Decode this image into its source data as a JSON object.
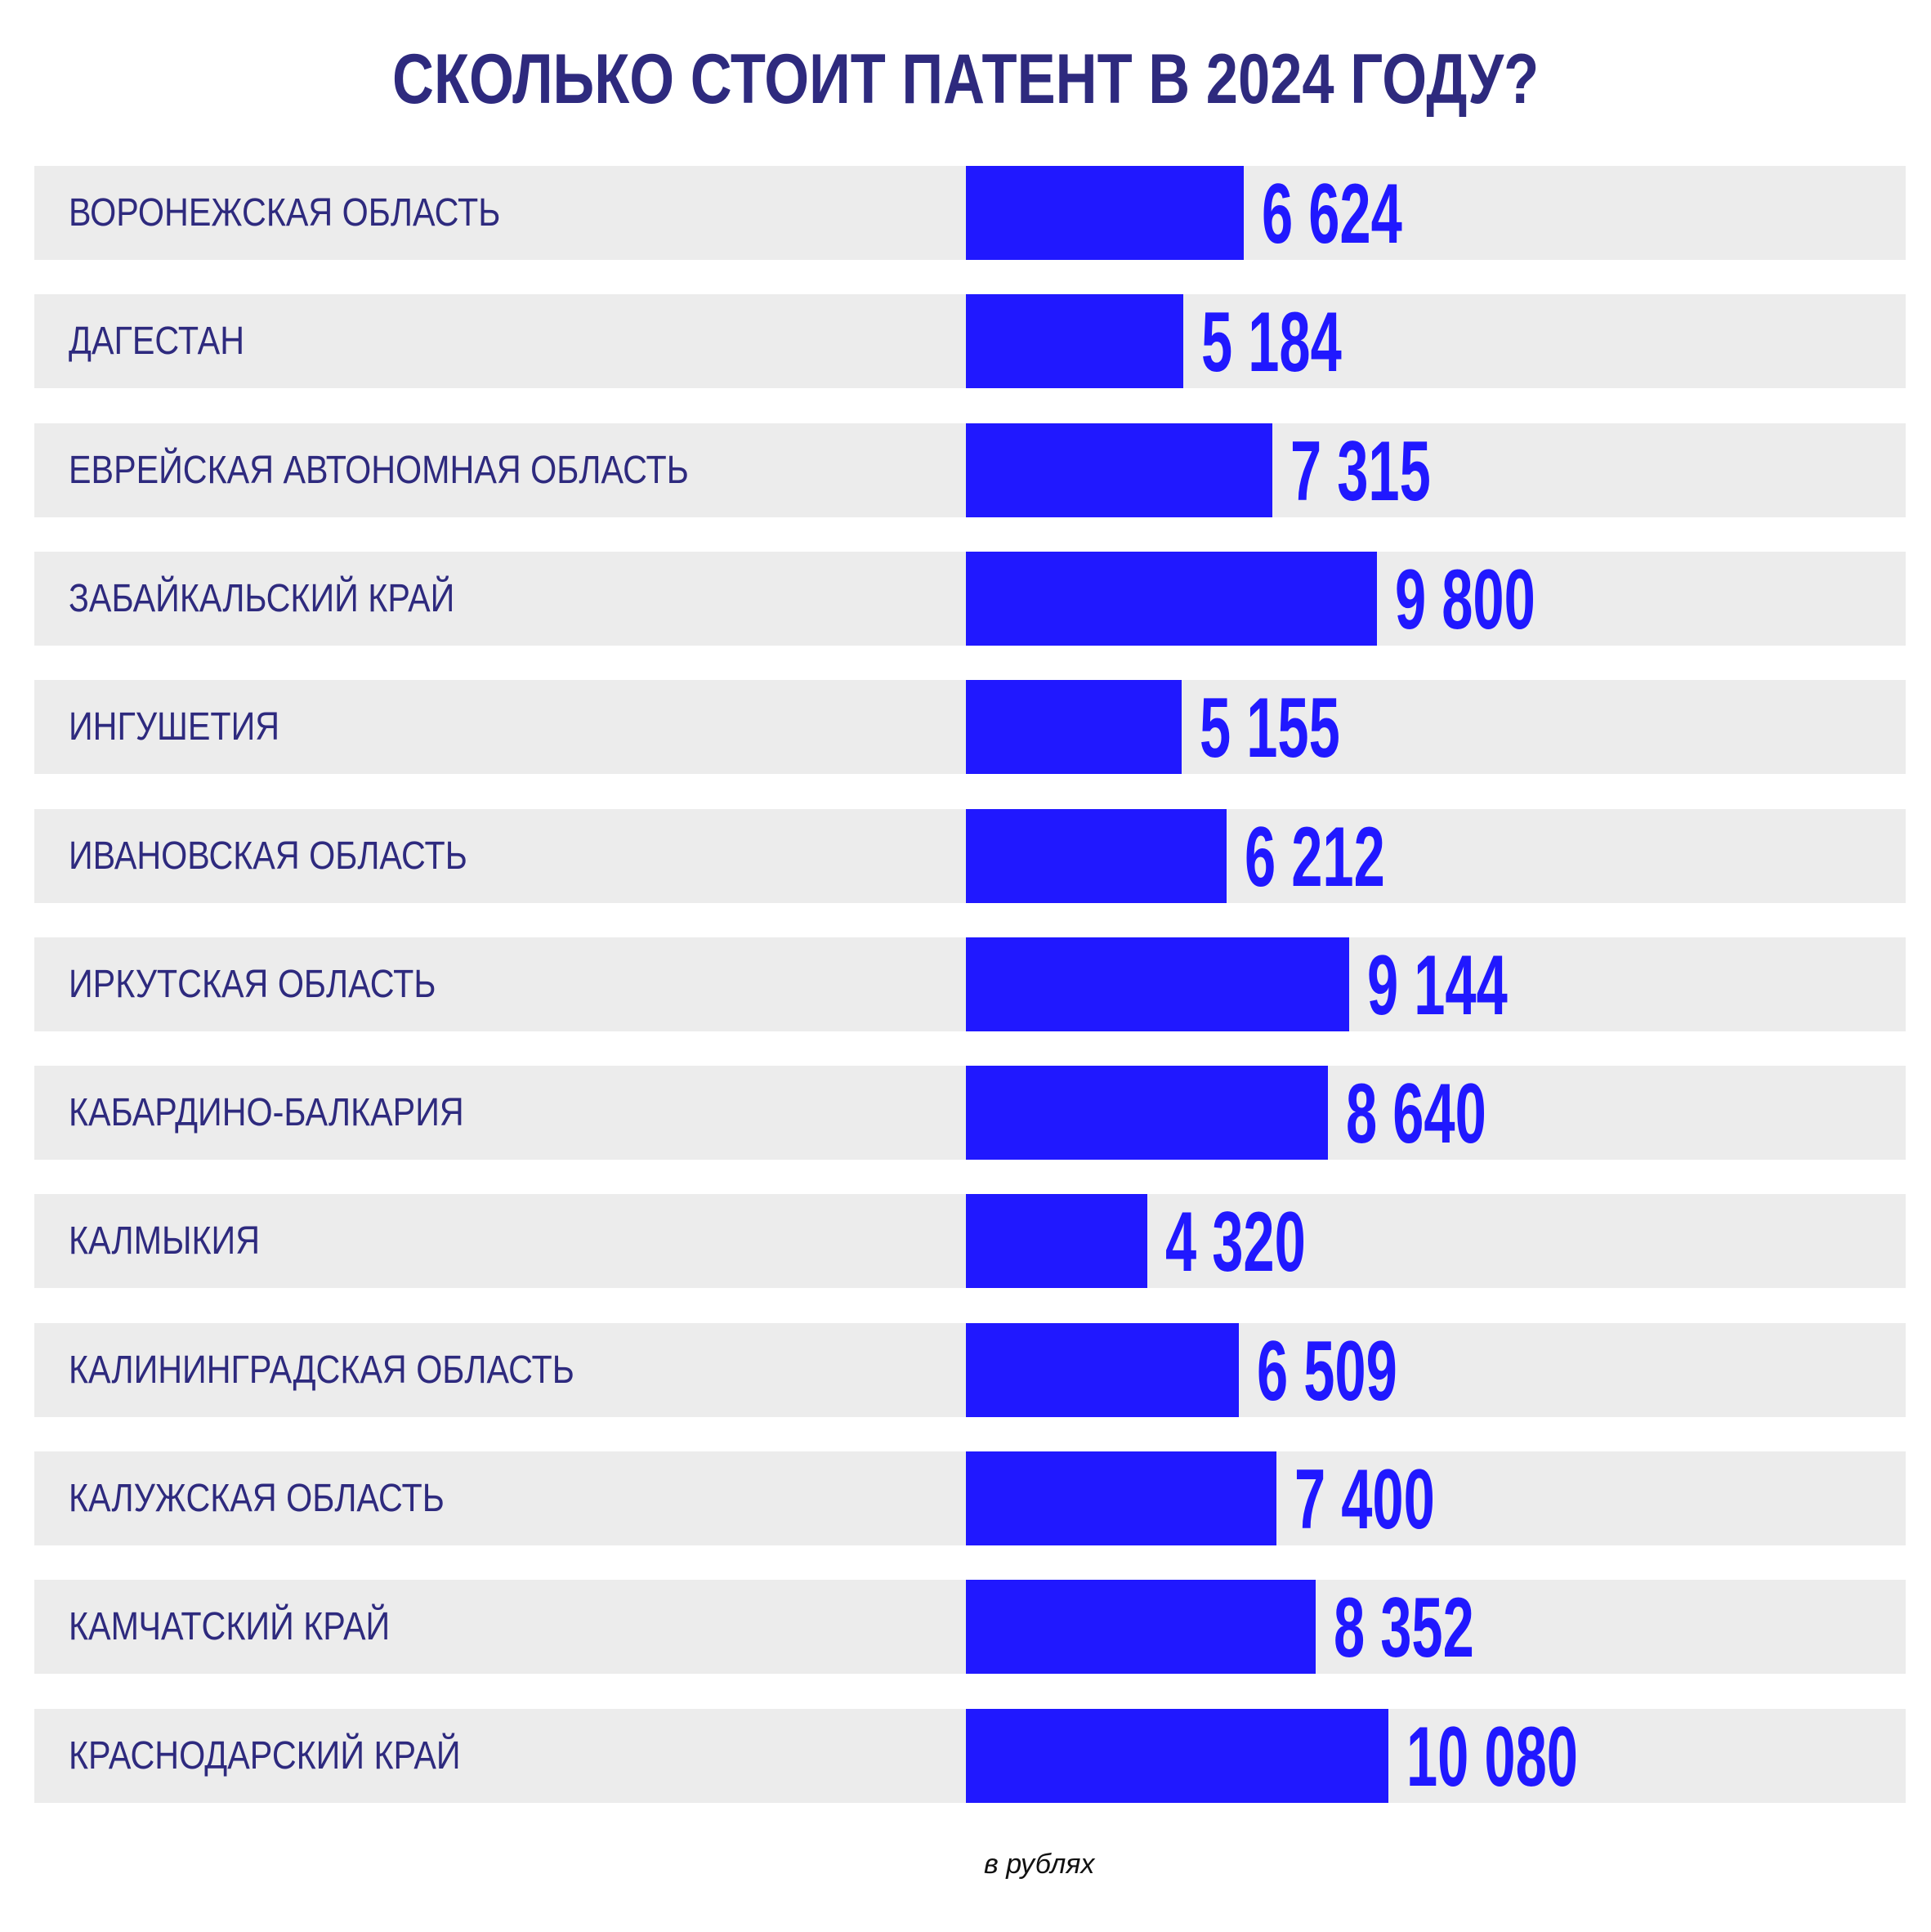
{
  "chart_data": {
    "type": "bar",
    "orientation": "horizontal",
    "title": "СКОЛЬКО СТОИТ ПАТЕНТ В 2024 ГОДУ?",
    "unit_note": "в рублях",
    "categories": [
      "ВОРОНЕЖСКАЯ ОБЛАСТЬ",
      "ДАГЕСТАН",
      "ЕВРЕЙСКАЯ АВТОНОМНАЯ ОБЛАСТЬ",
      "ЗАБАЙКАЛЬСКИЙ КРАЙ",
      "ИНГУШЕТИЯ",
      "ИВАНОВСКАЯ ОБЛАСТЬ",
      "ИРКУТСКАЯ ОБЛАСТЬ",
      "КАБАРДИНО-БАЛКАРИЯ",
      "КАЛМЫКИЯ",
      "КАЛИНИНГРАДСКАЯ ОБЛАСТЬ",
      "КАЛУЖСКАЯ ОБЛАСТЬ",
      "КАМЧАТСКИЙ КРАЙ",
      "КРАСНОДАРСКИЙ КРАЙ"
    ],
    "values": [
      6624,
      5184,
      7315,
      9800,
      5155,
      6212,
      9144,
      8640,
      4320,
      6509,
      7400,
      8352,
      10080
    ],
    "value_labels": [
      "6 624",
      "5 184",
      "7 315",
      "9 800",
      "5 155",
      "6 212",
      "9 144",
      "8 640",
      "4 320",
      "6 509",
      "7 400",
      "8 352",
      "10 080"
    ],
    "colors": {
      "bar": "#2018ff",
      "row_bg": "#ececec",
      "text": "#2e2a7e"
    }
  }
}
